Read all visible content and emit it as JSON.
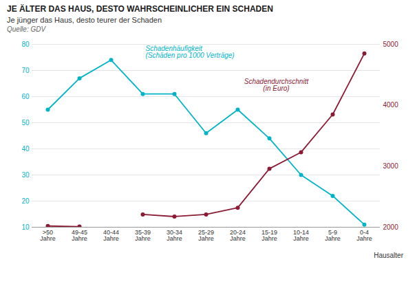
{
  "chart_data": {
    "type": "line",
    "title": "JE ÄLTER DAS HAUS, DESTO WAHRSCHEINLICHER EIN SCHADEN",
    "subtitle": "Je jünger das Haus, desto teurer der Schaden",
    "source": "Quelle: GDV",
    "x_label": "Hausalter",
    "categories": [
      ">50\nJahre",
      "49-45\nJahre",
      "40-44\nJahre",
      "35-39\nJahre",
      "30-34\nJahre",
      "25-29\nJahre",
      "20-24\nJahre",
      "15-19\nJahre",
      "10-14\nJahre",
      "5-9\nJahre",
      "0-4\nJahre"
    ],
    "series": [
      {
        "name": "Schadenhäufigkeit\n(Schäden pro 1000 Verträge)",
        "color": "#00B4C8",
        "marker": "circle",
        "values": [
          55,
          67,
          74,
          61,
          61,
          46,
          55,
          44,
          30,
          22,
          11
        ]
      },
      {
        "name": "Schadendurchschnitt\n(in Euro)",
        "color": "#8B1A34",
        "marker": "circle",
        "axis": "y2",
        "values": [
          2020,
          2010,
          null,
          2210,
          2175,
          2210,
          2320,
          2960,
          3230,
          3850,
          4850
        ]
      }
    ],
    "ylim": [
      10,
      80
    ],
    "yticks": [
      10,
      20,
      30,
      40,
      50,
      60,
      70,
      80
    ],
    "y2lim": [
      2000,
      5000
    ],
    "y2ticks": [
      2000,
      3000,
      4000,
      5000
    ],
    "grid": true
  }
}
